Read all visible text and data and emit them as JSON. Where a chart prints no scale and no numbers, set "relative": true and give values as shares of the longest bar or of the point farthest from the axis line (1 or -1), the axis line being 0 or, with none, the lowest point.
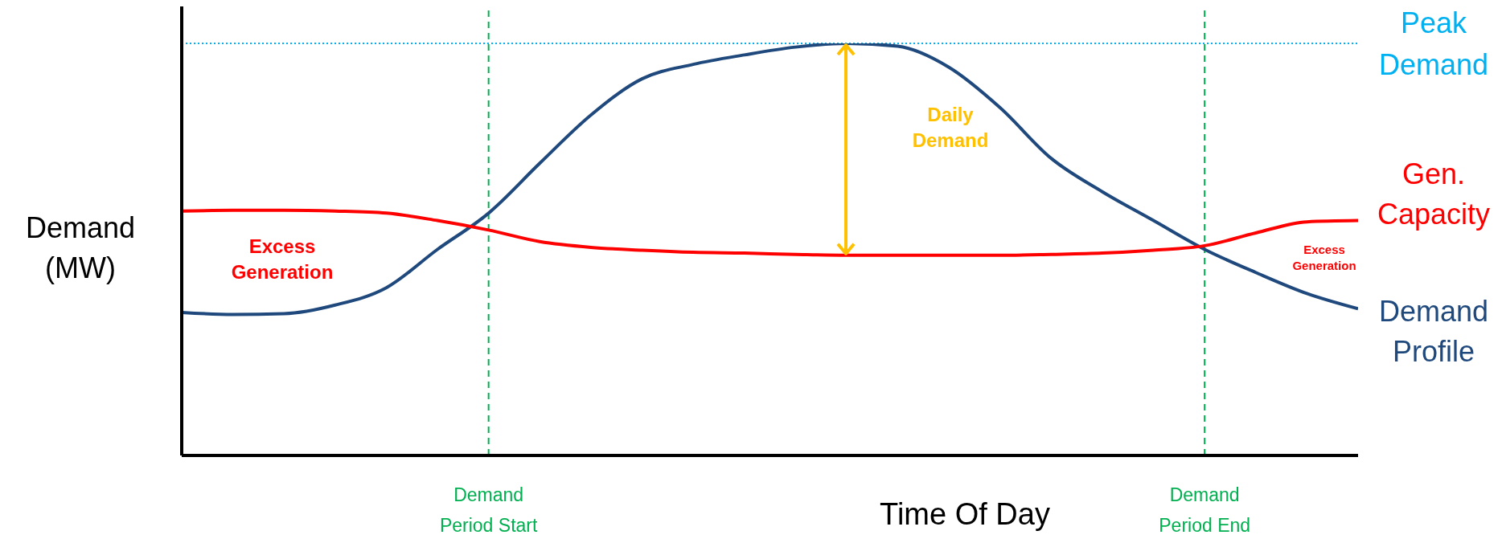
{
  "chart_data": {
    "type": "line",
    "relative": true,
    "xlabel": "Time Of Day",
    "ylabel": "Demand (MW)",
    "categories": [
      null,
      null,
      null,
      null,
      null,
      null,
      "Demand Period Start",
      null,
      null,
      null,
      null,
      null,
      null,
      null,
      null,
      null,
      null,
      null,
      null,
      null,
      "Demand Period End",
      null,
      null,
      null
    ],
    "series": [
      {
        "name": "Demand Profile",
        "color": "#1f497d",
        "values": [
          0.347,
          0.342,
          0.344,
          0.365,
          0.407,
          0.5,
          0.588,
          0.709,
          0.826,
          0.914,
          0.949,
          0.972,
          0.991,
          1,
          0.993,
          0.942,
          0.844,
          0.721,
          0.64,
          0.57,
          0.5,
          0.444,
          0.393,
          0.356
        ]
      },
      {
        "name": "Gen. Capacity",
        "color": "#ff0000",
        "values": [
          0.593,
          0.595,
          0.595,
          0.593,
          0.588,
          0.57,
          0.547,
          0.519,
          0.505,
          0.498,
          0.493,
          0.491,
          0.488,
          0.486,
          0.486,
          0.486,
          0.486,
          0.488,
          0.491,
          0.498,
          0.509,
          0.54,
          0.567,
          0.57
        ]
      }
    ],
    "ref_lines": [
      {
        "axis": "y",
        "value": 1,
        "label": "Peak Demand",
        "color": "#00b0f0",
        "line_style": "dotted"
      },
      {
        "axis": "x",
        "value": "Demand Period Start",
        "color": "#00b050",
        "line_style": "dashed"
      },
      {
        "axis": "x",
        "value": "Demand Period End",
        "color": "#00b050",
        "line_style": "dashed"
      }
    ],
    "annotations": [
      "Excess Generation",
      "Daily Demand",
      "Excess Generation"
    ],
    "legend": false
  }
}
